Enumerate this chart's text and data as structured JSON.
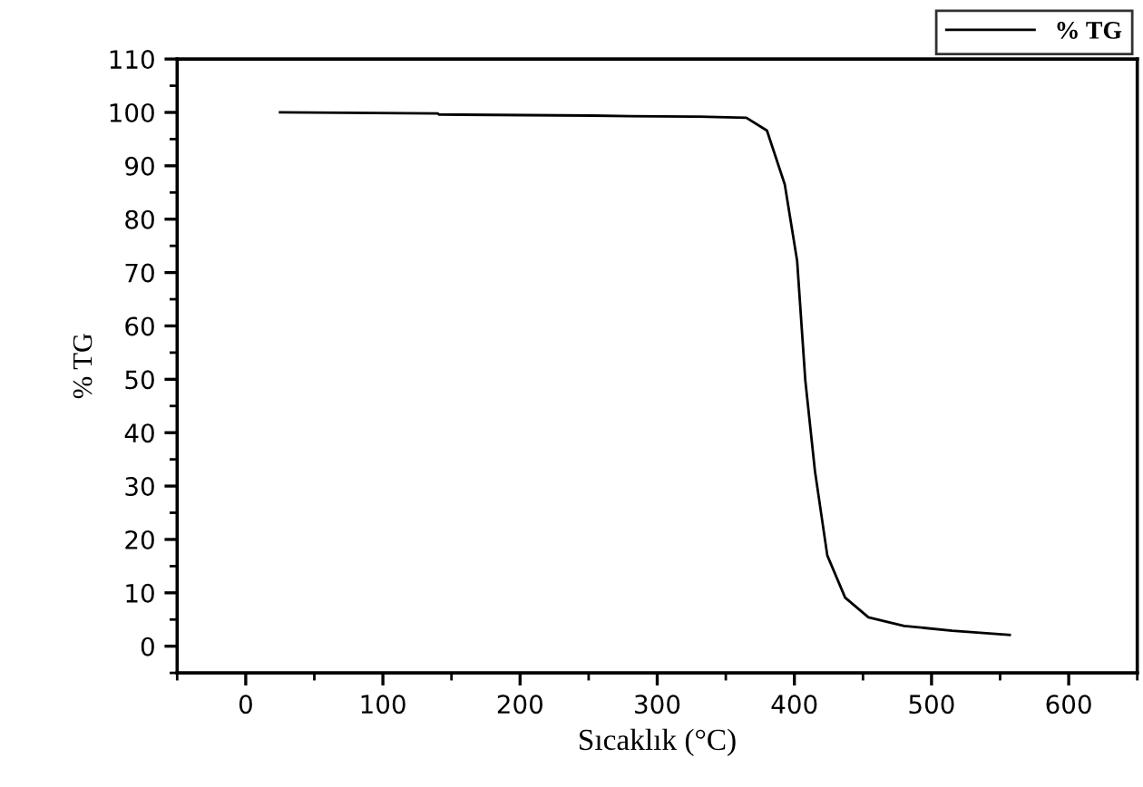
{
  "chart_data": {
    "type": "line",
    "xlabel": "Sıcaklık (°C)",
    "ylabel": "% TG",
    "xlim": [
      -50,
      650
    ],
    "xticks": [
      0,
      100,
      200,
      300,
      400,
      500,
      600
    ],
    "ylim": [
      -5,
      110
    ],
    "yticks": [
      0,
      10,
      20,
      30,
      40,
      50,
      60,
      70,
      80,
      90,
      100,
      110
    ],
    "grid": false,
    "legend": "top right",
    "marker": "none",
    "line_style": "solid",
    "series": [
      {
        "name": "% TG",
        "color": "#000000",
        "x": [
          25,
          140,
          141,
          253,
          280,
          330,
          365,
          380,
          393,
          402,
          408,
          415,
          424,
          437,
          454,
          480,
          515,
          557
        ],
        "values": [
          100,
          99.8,
          99.6,
          99.4,
          99.3,
          99.2,
          99.0,
          96.6,
          86.5,
          72.2,
          49.7,
          32.8,
          17,
          9.1,
          5.4,
          3.8,
          2.9,
          2.1
        ]
      }
    ]
  }
}
